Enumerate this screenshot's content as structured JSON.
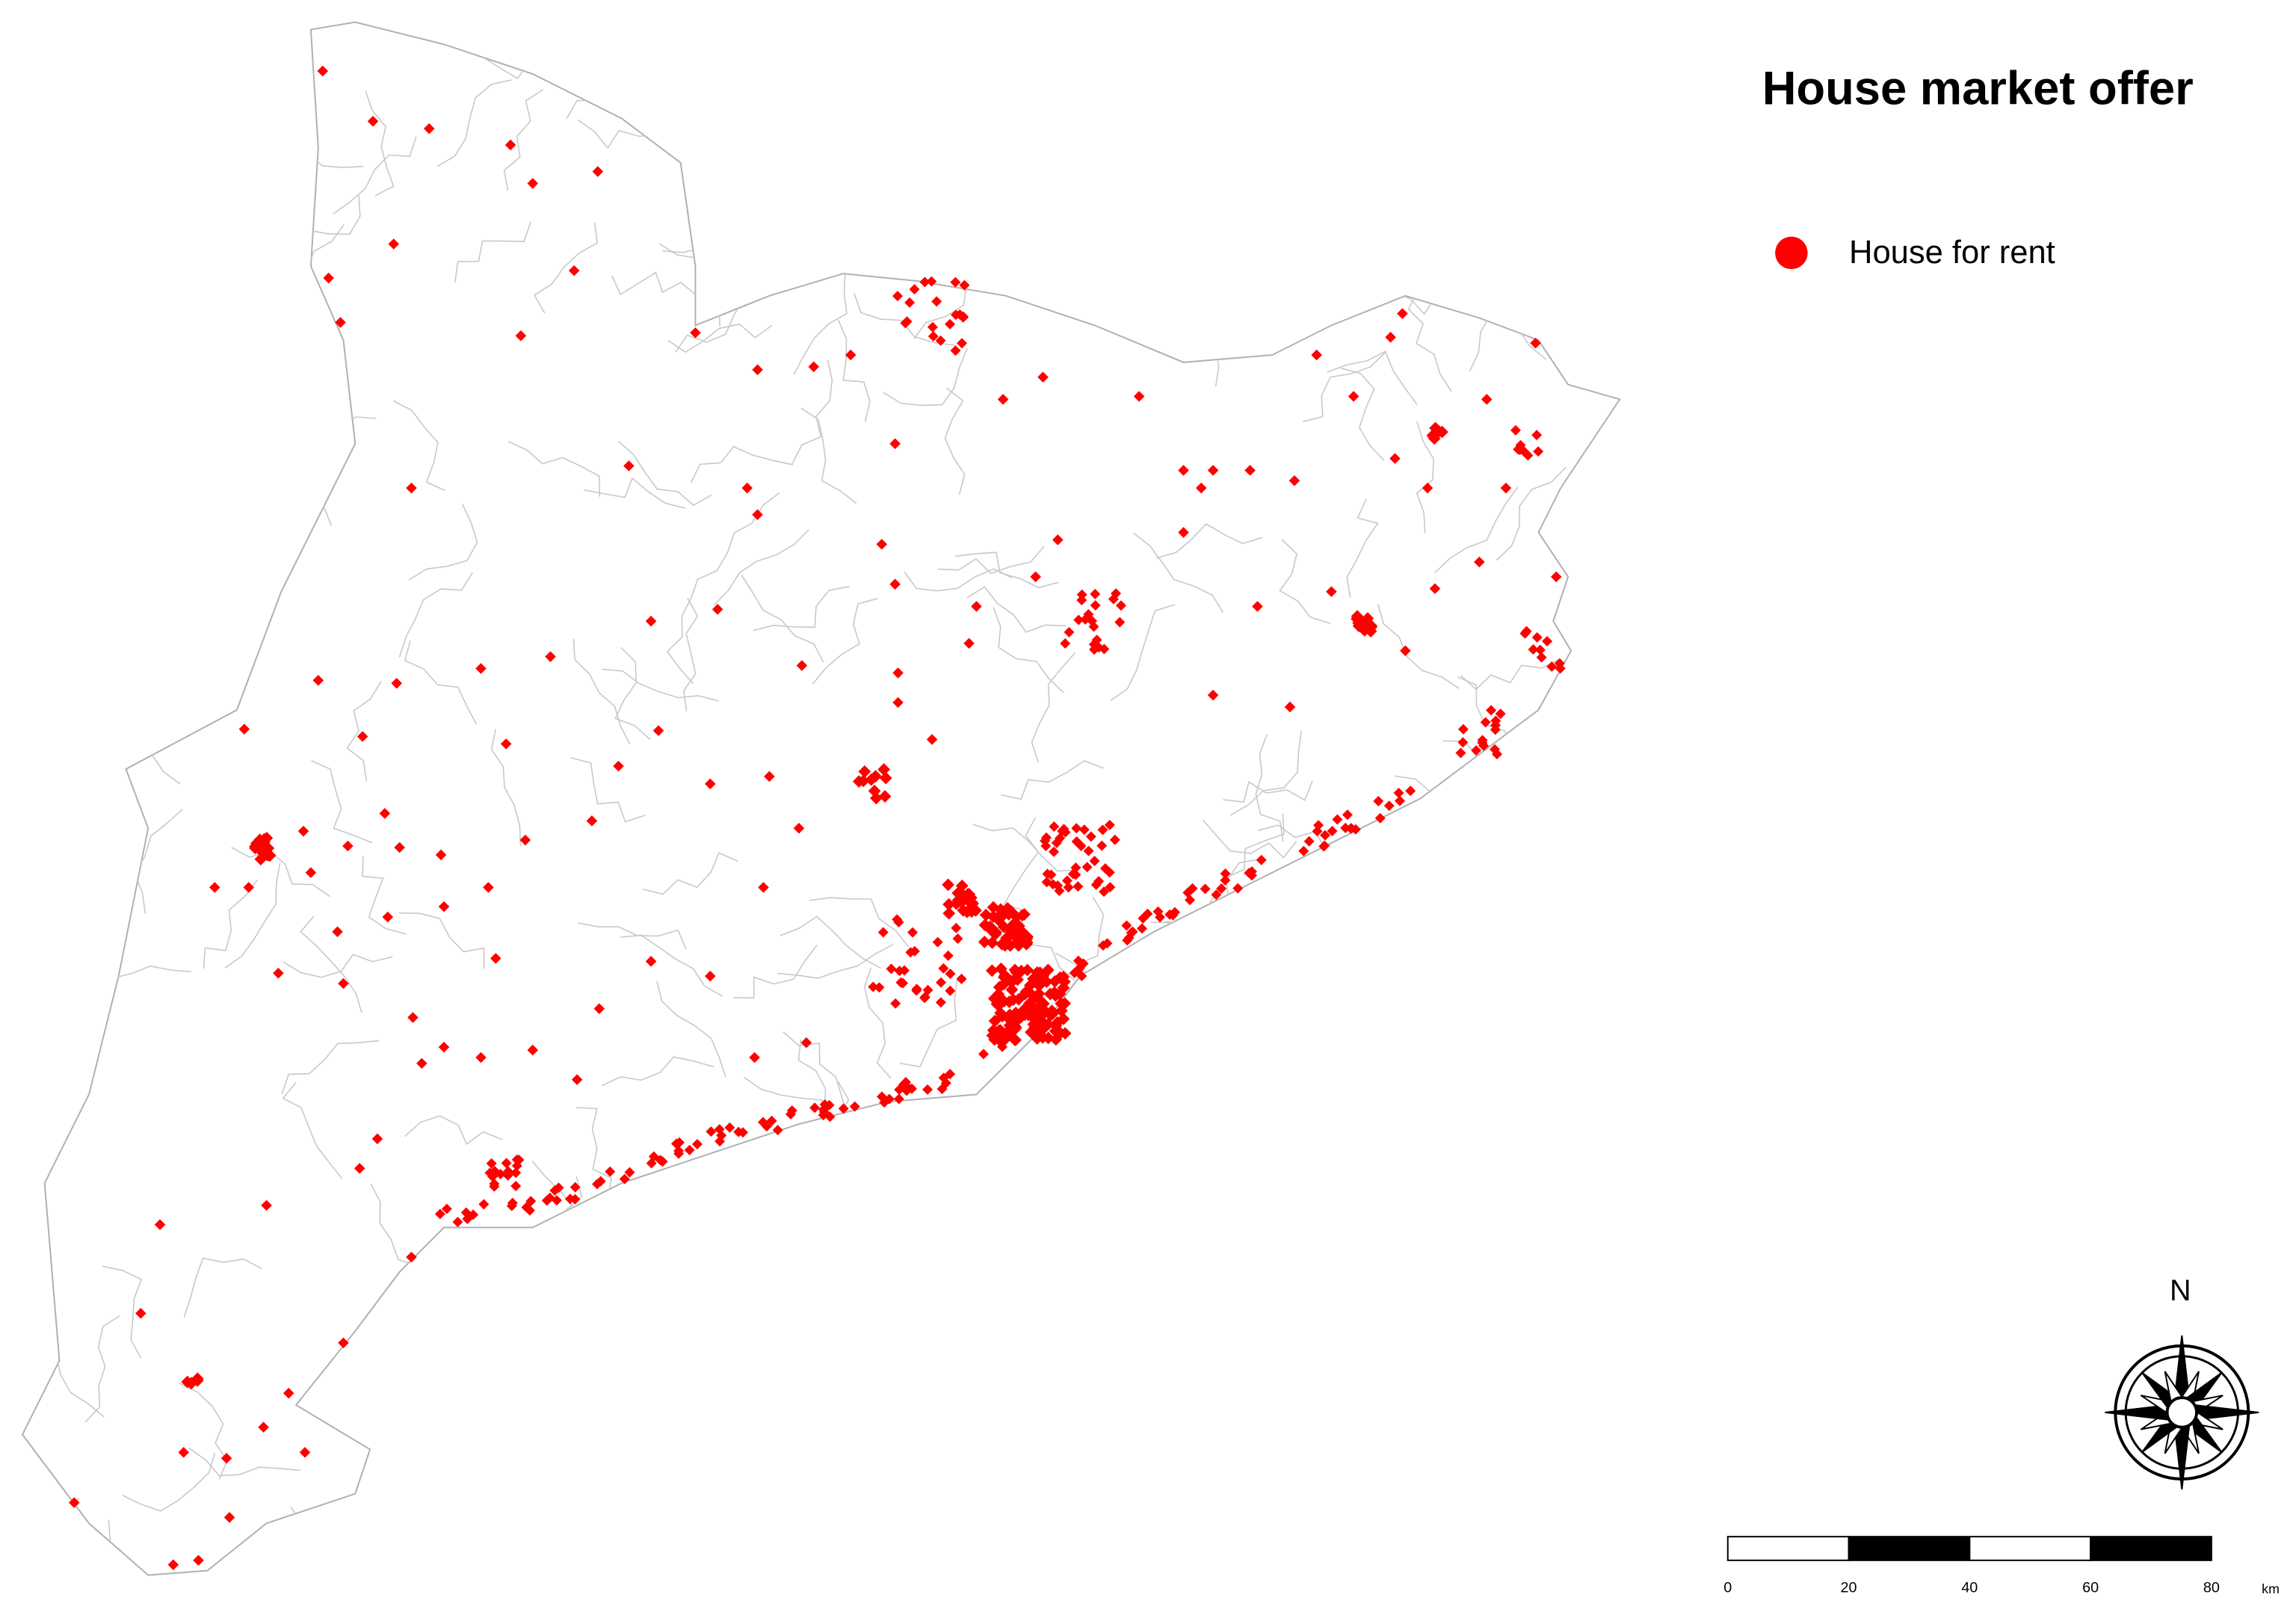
{
  "title": "House market offer",
  "legend": {
    "label": "House for rent",
    "color": "#ff0000"
  },
  "north": "N",
  "scale": {
    "ticks": [
      0,
      20,
      40,
      60,
      80
    ],
    "unit": "km"
  }
}
